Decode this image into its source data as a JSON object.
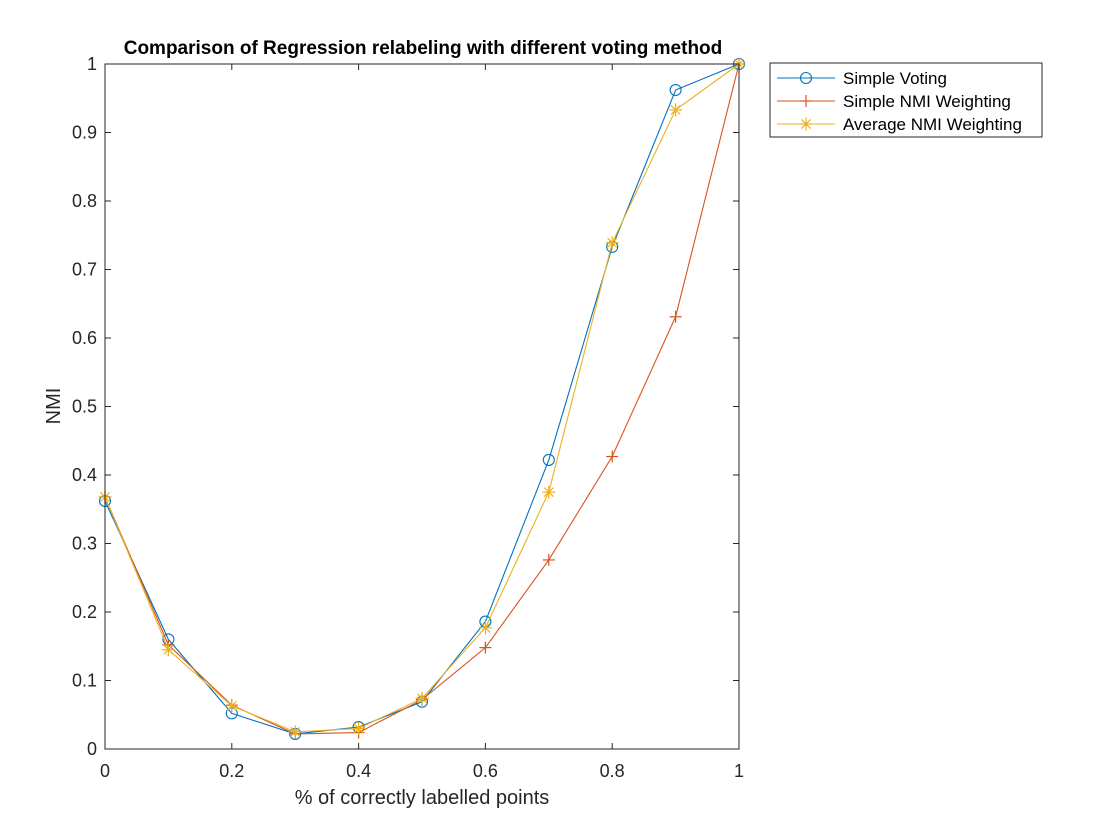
{
  "chart_data": {
    "type": "line",
    "title": "Comparison of Regression relabeling with different voting method",
    "xlabel": "% of correctly labelled points",
    "ylabel": "NMI",
    "xlim": [
      0,
      1
    ],
    "ylim": [
      0,
      1
    ],
    "x_ticks": [
      "0",
      "0.2",
      "0.4",
      "0.6",
      "0.8",
      "1"
    ],
    "y_ticks": [
      "0",
      "0.1",
      "0.2",
      "0.3",
      "0.4",
      "0.5",
      "0.6",
      "0.7",
      "0.8",
      "0.9",
      "1"
    ],
    "grid": false,
    "box": true,
    "legend_position": "outside-top-right",
    "x": [
      0,
      0.1,
      0.2,
      0.3,
      0.4,
      0.5,
      0.6,
      0.7,
      0.8,
      0.9,
      1.0
    ],
    "series": [
      {
        "name": "Simple Voting",
        "color": "#0072BD",
        "marker": "circle",
        "values": [
          0.362,
          0.16,
          0.052,
          0.022,
          0.032,
          0.069,
          0.186,
          0.422,
          0.733,
          0.962,
          1.0
        ]
      },
      {
        "name": "Simple NMI Weighting",
        "color": "#D95319",
        "marker": "plus",
        "values": [
          0.368,
          0.152,
          0.064,
          0.022,
          0.024,
          0.072,
          0.148,
          0.276,
          0.427,
          0.631,
          1.0
        ]
      },
      {
        "name": "Average NMI Weighting",
        "color": "#EDB120",
        "marker": "asterisk",
        "values": [
          0.368,
          0.145,
          0.063,
          0.025,
          0.03,
          0.074,
          0.177,
          0.375,
          0.739,
          0.933,
          1.0
        ]
      }
    ]
  }
}
